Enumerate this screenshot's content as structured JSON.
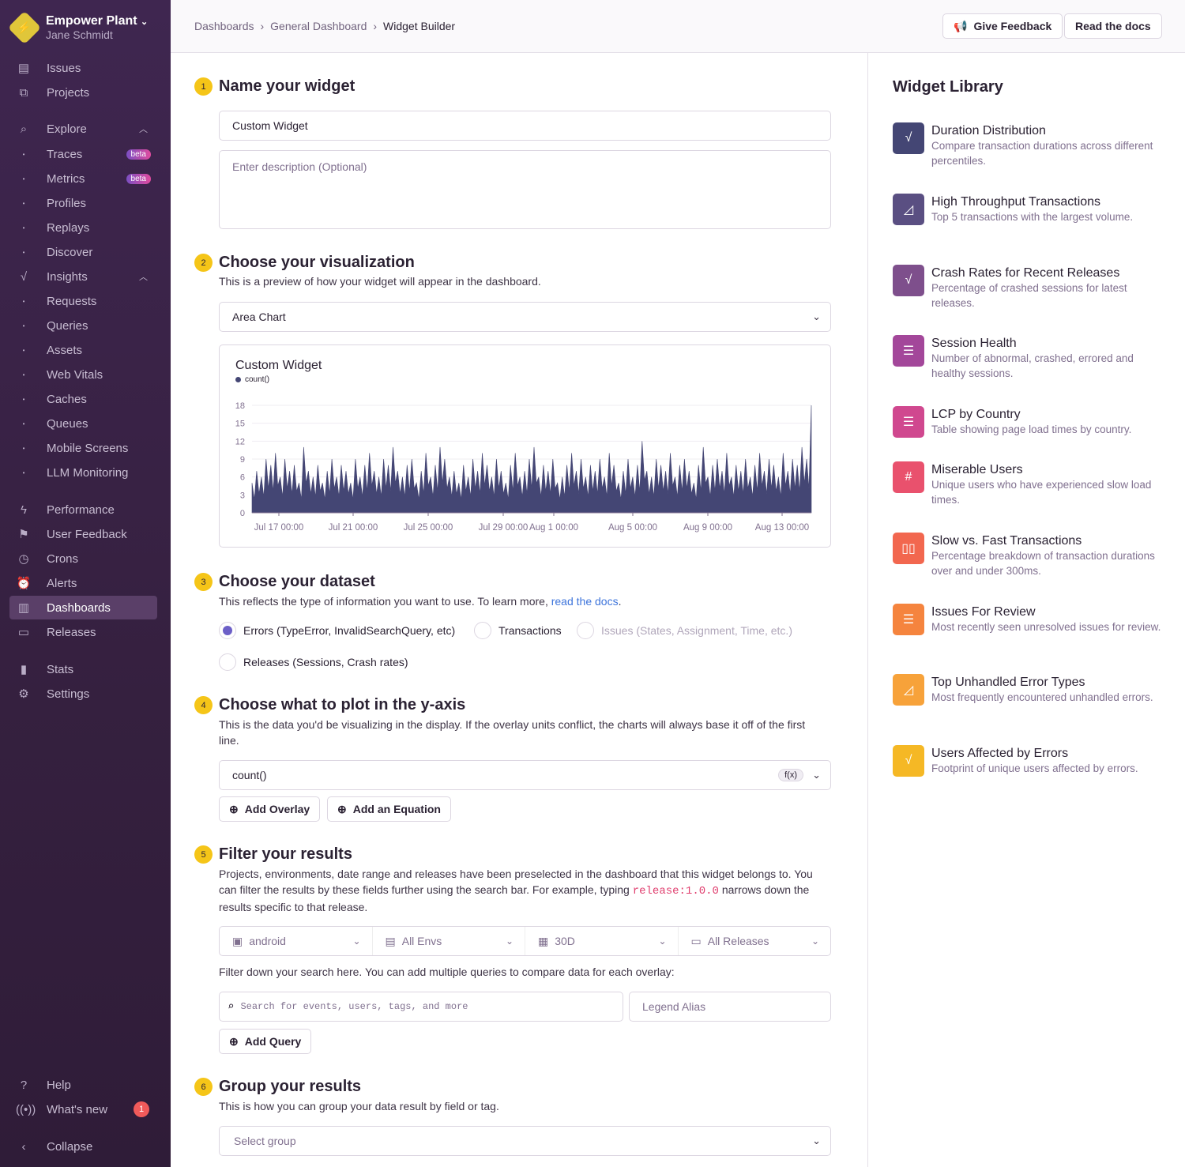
{
  "sidebar": {
    "org": "Empower Plant",
    "user": "Jane Schmidt",
    "items": [
      {
        "label": "Issues",
        "icon": "issues-icon"
      },
      {
        "label": "Projects",
        "icon": "projects-icon"
      },
      {
        "label": "Explore",
        "icon": "search-icon"
      },
      {
        "label": "Traces",
        "badge": "beta"
      },
      {
        "label": "Metrics",
        "badge": "beta"
      },
      {
        "label": "Profiles"
      },
      {
        "label": "Replays"
      },
      {
        "label": "Discover"
      },
      {
        "label": "Insights",
        "icon": "insights-icon"
      },
      {
        "label": "Requests"
      },
      {
        "label": "Queries"
      },
      {
        "label": "Assets"
      },
      {
        "label": "Web Vitals"
      },
      {
        "label": "Caches"
      },
      {
        "label": "Queues"
      },
      {
        "label": "Mobile Screens"
      },
      {
        "label": "LLM Monitoring"
      },
      {
        "label": "Performance"
      },
      {
        "label": "User Feedback"
      },
      {
        "label": "Crons"
      },
      {
        "label": "Alerts"
      },
      {
        "label": "Dashboards"
      },
      {
        "label": "Releases"
      },
      {
        "label": "Stats"
      },
      {
        "label": "Settings"
      }
    ],
    "help": "Help",
    "whats_new": "What's new",
    "whats_new_count": "1",
    "collapse": "Collapse"
  },
  "header": {
    "breadcrumbs": [
      "Dashboards",
      "General Dashboard",
      "Widget Builder"
    ],
    "give_feedback": "Give Feedback",
    "read_docs": "Read the docs"
  },
  "steps": {
    "s1": {
      "num": "1",
      "title": "Name your widget",
      "name_value": "Custom Widget",
      "desc_placeholder": "Enter description (Optional)"
    },
    "s2": {
      "num": "2",
      "title": "Choose your visualization",
      "desc": "This is a preview of how your widget will appear in the dashboard.",
      "viz": "Area Chart"
    },
    "s3": {
      "num": "3",
      "title": "Choose your dataset",
      "desc": "This reflects the type of information you want to use. To learn more,",
      "link": "read the docs",
      "period": ".",
      "options": [
        "Errors (TypeError, InvalidSearchQuery, etc)",
        "Transactions",
        "Issues (States, Assignment, Time, etc.)",
        "Releases (Sessions, Crash rates)"
      ],
      "selected": 0
    },
    "s4": {
      "num": "4",
      "title": "Choose what to plot in the y-axis",
      "desc": "This is the data you'd be visualizing in the display. If the overlay units conflict, the charts will always base it off of the first line.",
      "field": "count()",
      "fx": "f(x)",
      "add_overlay": "Add Overlay",
      "add_equation": "Add an Equation"
    },
    "s5": {
      "num": "5",
      "title": "Filter your results",
      "desc1": "Projects, environments, date range and releases have been preselected in the dashboard that this widget belongs to. You can filter the results by these fields further using the search bar. For example, typing",
      "code": "release:1.0.0",
      "desc2": "narrows down the results specific to that release.",
      "project": "android",
      "envs": "All Envs",
      "period": "30D",
      "releases": "All Releases",
      "filter_hint": "Filter down your search here. You can add multiple queries to compare data for each overlay:",
      "search_placeholder": "Search for events, users, tags, and more",
      "alias_placeholder": "Legend Alias",
      "add_query": "Add Query"
    },
    "s6": {
      "num": "6",
      "title": "Group your results",
      "desc": "This is how you can group your data result by field or tag.",
      "placeholder": "Select group"
    }
  },
  "chart_data": {
    "type": "area",
    "title": "Custom Widget",
    "series": [
      {
        "name": "count()",
        "color": "#444674",
        "values": [
          5,
          7,
          6,
          9,
          8,
          10,
          6,
          9,
          7,
          8,
          5,
          11,
          7,
          6,
          8,
          5,
          7,
          9,
          6,
          8,
          7,
          5,
          9,
          6,
          8,
          10,
          7,
          6,
          9,
          8,
          11,
          7,
          6,
          8,
          9,
          5,
          7,
          10,
          6,
          8,
          11,
          9,
          6,
          7,
          5,
          8,
          6,
          9,
          7,
          10,
          8,
          6,
          9,
          7,
          5,
          8,
          10,
          6,
          7,
          9,
          11,
          6,
          8,
          7,
          9,
          5,
          6,
          8,
          10,
          7,
          9,
          6,
          8,
          7,
          9,
          6,
          10,
          8,
          5,
          7,
          9,
          6,
          8,
          12,
          7,
          6,
          9,
          8,
          7,
          10,
          6,
          8,
          9,
          7,
          5,
          8,
          11,
          6,
          8,
          9,
          7,
          10,
          6,
          8,
          7,
          9,
          6,
          8,
          10,
          7,
          9,
          8,
          6,
          10,
          7,
          9,
          8,
          11,
          9,
          18
        ]
      }
    ],
    "x_ticks": [
      "Jul 17 00:00",
      "Jul 21 00:00",
      "Jul 25 00:00",
      "Jul 29 00:00",
      "Aug 1 00:00",
      "Aug 5 00:00",
      "Aug 9 00:00",
      "Aug 13 00:00"
    ],
    "y_ticks": [
      0,
      3,
      6,
      9,
      12,
      15,
      18
    ],
    "ylim": [
      0,
      18
    ],
    "grid": true,
    "legend": "top-left"
  },
  "library": {
    "title": "Widget Library",
    "items": [
      {
        "title": "Duration Distribution",
        "desc": "Compare transaction durations across different percentiles.",
        "color": "#444674",
        "icon": "line-chart-icon"
      },
      {
        "title": "High Throughput Transactions",
        "desc": "Top 5 transactions with the largest volume.",
        "color": "#5a4f82",
        "icon": "area-chart-icon"
      },
      {
        "title": "Crash Rates for Recent Releases",
        "desc": "Percentage of crashed sessions for latest releases.",
        "color": "#7e4f8c",
        "icon": "line-chart-icon"
      },
      {
        "title": "Session Health",
        "desc": "Number of abnormal, crashed, errored and healthy sessions.",
        "color": "#a3479a",
        "icon": "table-icon"
      },
      {
        "title": "LCP by Country",
        "desc": "Table showing page load times by country.",
        "color": "#d0488f",
        "icon": "table-icon"
      },
      {
        "title": "Miserable Users",
        "desc": "Unique users who have experienced slow load times.",
        "color": "#e9516d",
        "icon": "big-number-icon"
      },
      {
        "title": "Slow vs. Fast Transactions",
        "desc": "Percentage breakdown of transaction durations over and under 300ms.",
        "color": "#f2674f",
        "icon": "bar-chart-icon"
      },
      {
        "title": "Issues For Review",
        "desc": "Most recently seen unresolved issues for review.",
        "color": "#f5843e",
        "icon": "table-icon"
      },
      {
        "title": "Top Unhandled Error Types",
        "desc": "Most frequently encountered unhandled errors.",
        "color": "#f7a23a",
        "icon": "area-chart-icon"
      },
      {
        "title": "Users Affected by Errors",
        "desc": "Footprint of unique users affected by errors.",
        "color": "#f5b825",
        "icon": "line-chart-icon"
      }
    ]
  }
}
